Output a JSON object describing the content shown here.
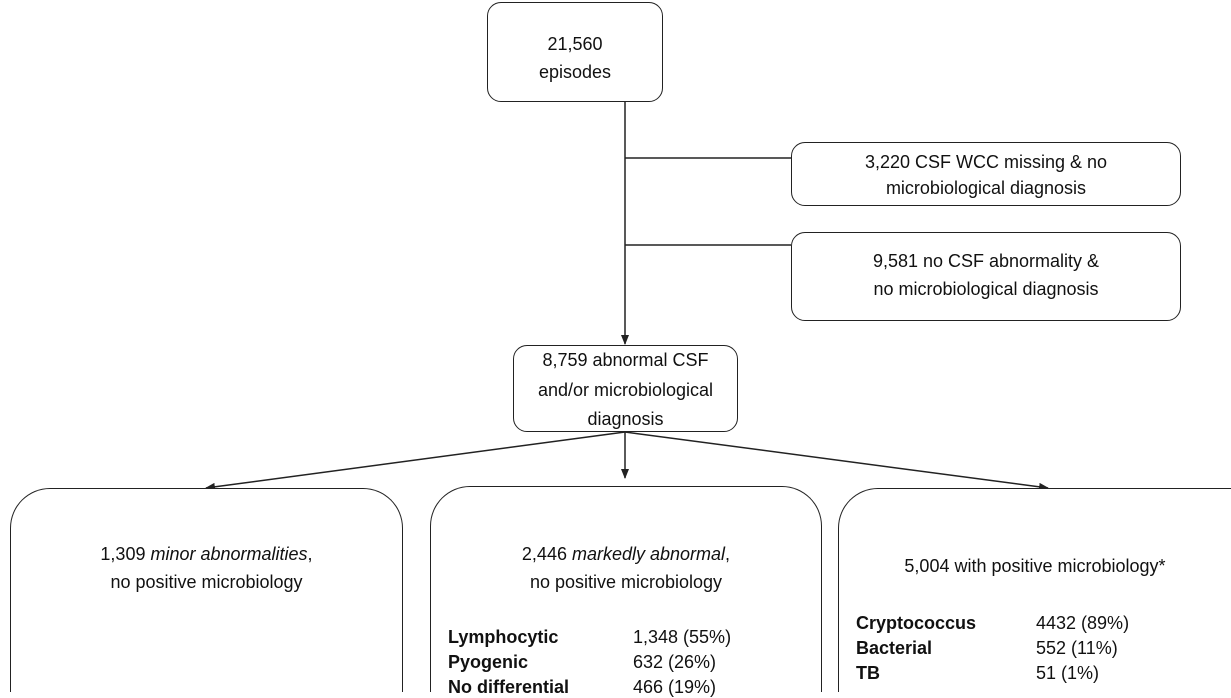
{
  "start": {
    "lines": [
      "21,560",
      "episodes"
    ]
  },
  "exclusions": [
    {
      "lines": [
        "3,220 CSF WCC missing & no",
        "microbiological diagnosis"
      ]
    },
    {
      "lines": [
        "9,581 no CSF abnormality &",
        "no microbiological diagnosis"
      ]
    }
  ],
  "abnormal": {
    "lines": [
      "8,759 abnormal CSF",
      "and/or microbiological",
      "diagnosis"
    ]
  },
  "groups": [
    {
      "count": "1,309",
      "emphasis": "minor abnormalities",
      "suffix": ",",
      "line2": "no positive microbiology"
    },
    {
      "count": "2,446",
      "emphasis": "markedly abnormal",
      "suffix": ",",
      "line2": "no positive microbiology",
      "rows": [
        {
          "label": "Lymphocytic",
          "value": "1,348 (55%)"
        },
        {
          "label": "Pyogenic",
          "value": "632 (26%)"
        },
        {
          "label": "No differential",
          "value": "466 (19%)"
        }
      ]
    },
    {
      "title": "5,004 with positive microbiology*",
      "rows": [
        {
          "label": "Cryptococcus",
          "value": "4432 (89%)"
        },
        {
          "label": "Bacterial",
          "value": "552 (11%)"
        },
        {
          "label": "TB",
          "value": "51 (1%)"
        }
      ]
    }
  ]
}
